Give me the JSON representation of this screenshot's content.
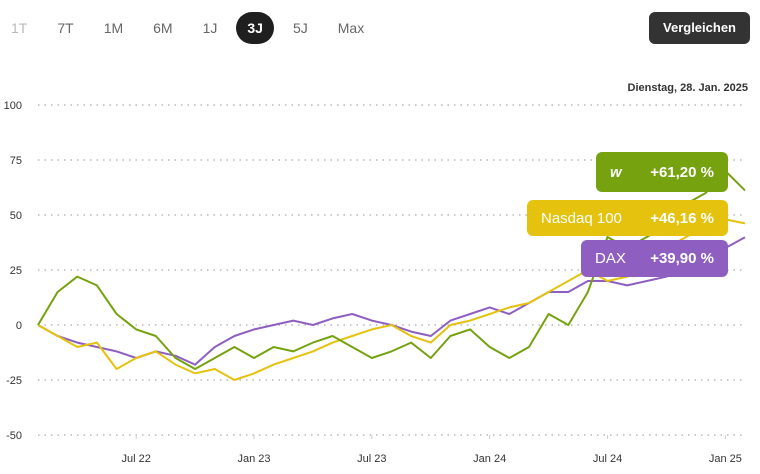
{
  "controls": {
    "ranges": [
      "1T",
      "7T",
      "1M",
      "6M",
      "1J",
      "3J",
      "5J",
      "Max"
    ],
    "selected": "3J",
    "compare_button": "Vergleichen"
  },
  "chart_data": {
    "type": "line",
    "date_label": "Dienstag, 28. Jan. 2025",
    "x": [
      "2022-02",
      "2022-03",
      "2022-04",
      "2022-05",
      "2022-06",
      "2022-07",
      "2022-08",
      "2022-09",
      "2022-10",
      "2022-11",
      "2022-12",
      "2023-01",
      "2023-02",
      "2023-03",
      "2023-04",
      "2023-05",
      "2023-06",
      "2023-07",
      "2023-08",
      "2023-09",
      "2023-10",
      "2023-11",
      "2023-12",
      "2024-01",
      "2024-02",
      "2024-03",
      "2024-04",
      "2024-05",
      "2024-06",
      "2024-07",
      "2024-08",
      "2024-09",
      "2024-10",
      "2024-11",
      "2024-12",
      "2025-01",
      "2025-02"
    ],
    "xlim": [
      "2022-02",
      "2025-02"
    ],
    "xticks": [
      {
        "value": "2022-07",
        "label": "Jul 22"
      },
      {
        "value": "2023-01",
        "label": "Jan 23"
      },
      {
        "value": "2023-07",
        "label": "Jul 23"
      },
      {
        "value": "2024-01",
        "label": "Jan 24"
      },
      {
        "value": "2024-07",
        "label": "Jul 24"
      },
      {
        "value": "2025-01",
        "label": "Jan 25"
      }
    ],
    "ylim": [
      -50,
      100
    ],
    "yticks": [
      -50,
      -25,
      0,
      25,
      50,
      75,
      100
    ],
    "grid": true,
    "series": [
      {
        "name": "w",
        "color": "#76a20f",
        "last_label": "+61,20 %",
        "values": [
          0,
          15,
          22,
          18,
          5,
          -2,
          -5,
          -15,
          -20,
          -15,
          -10,
          -15,
          -10,
          -12,
          -8,
          -5,
          -10,
          -15,
          -12,
          -8,
          -15,
          -5,
          -2,
          -10,
          -15,
          -10,
          5,
          0,
          15,
          40,
          35,
          40,
          45,
          55,
          60,
          70,
          61.2
        ]
      },
      {
        "name": "Nasdaq 100",
        "color": "#e5c20e",
        "last_label": "+46,16 %",
        "values": [
          0,
          -5,
          -10,
          -8,
          -20,
          -15,
          -12,
          -18,
          -22,
          -20,
          -25,
          -22,
          -18,
          -15,
          -12,
          -8,
          -5,
          -2,
          0,
          -5,
          -8,
          0,
          2,
          5,
          8,
          10,
          15,
          20,
          25,
          20,
          22,
          25,
          35,
          40,
          45,
          48,
          46.16
        ]
      },
      {
        "name": "DAX",
        "color": "#8e5fc0",
        "last_label": "+39,90 %",
        "values": [
          0,
          -5,
          -8,
          -10,
          -12,
          -15,
          -12,
          -14,
          -18,
          -10,
          -5,
          -2,
          0,
          2,
          0,
          3,
          5,
          2,
          0,
          -3,
          -5,
          2,
          5,
          8,
          5,
          10,
          15,
          15,
          20,
          20,
          18,
          20,
          22,
          25,
          28,
          35,
          39.9
        ]
      }
    ]
  }
}
